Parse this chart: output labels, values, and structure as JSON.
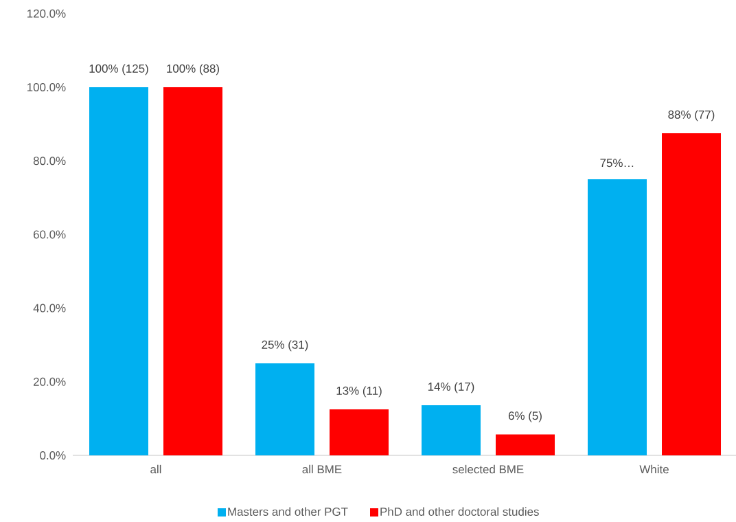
{
  "chart_data": {
    "type": "bar",
    "categories": [
      "all",
      "all BME",
      "selected BME",
      "White"
    ],
    "series": [
      {
        "name": "Masters and other PGT",
        "color": "#00b0f0",
        "values": [
          100,
          25,
          13.6,
          75
        ],
        "value_labels": [
          "100% (125)",
          "25% (31)",
          "14% (17)",
          "75%…"
        ]
      },
      {
        "name": "PhD and other doctoral studies",
        "color": "#ff0000",
        "values": [
          100,
          12.5,
          5.7,
          87.5
        ],
        "value_labels": [
          "100% (88)",
          "13% (11)",
          "6% (5)",
          "88% (77)"
        ]
      }
    ],
    "ylim": [
      0,
      120
    ],
    "yticks": [
      {
        "value": 0,
        "label": "0.0%"
      },
      {
        "value": 20,
        "label": "20.0%"
      },
      {
        "value": 40,
        "label": "40.0%"
      },
      {
        "value": 60,
        "label": "60.0%"
      },
      {
        "value": 80,
        "label": "80.0%"
      },
      {
        "value": 100,
        "label": "100.0%"
      },
      {
        "value": 120,
        "label": "120.0%"
      }
    ],
    "legend": "bottom"
  }
}
